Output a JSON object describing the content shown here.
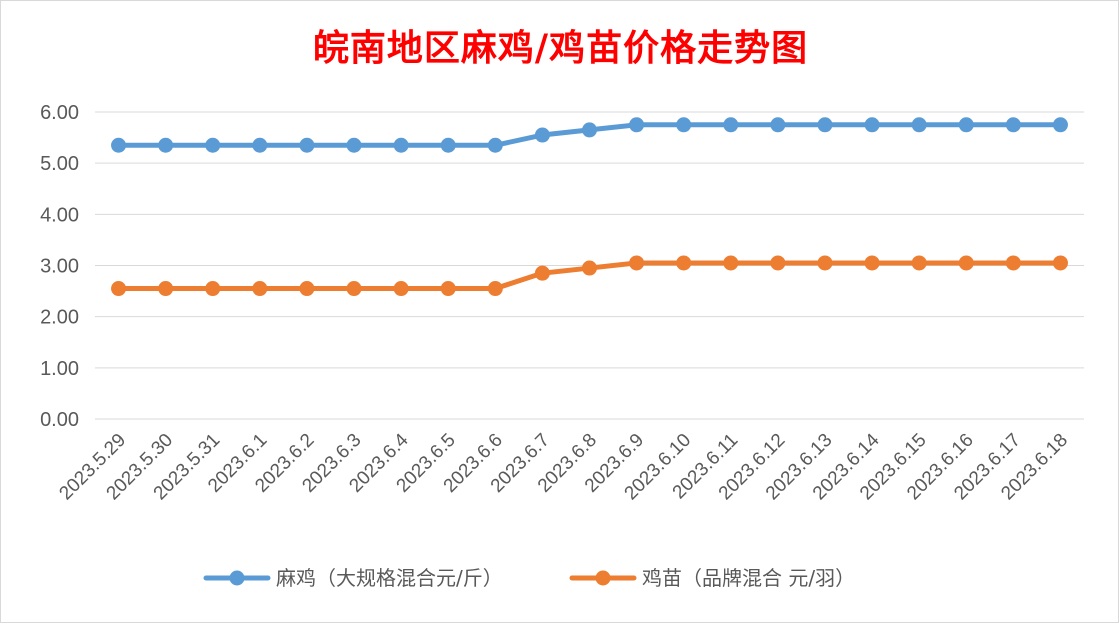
{
  "chart_data": {
    "type": "line",
    "title": "皖南地区麻鸡/鸡苗价格走势图",
    "xlabel": "",
    "ylabel": "",
    "ylim": [
      0,
      6
    ],
    "yticks": [
      "0.00",
      "1.00",
      "2.00",
      "3.00",
      "4.00",
      "5.00",
      "6.00"
    ],
    "grid": true,
    "legend_position": "bottom",
    "categories": [
      "2023.5.29",
      "2023.5.30",
      "2023.5.31",
      "2023.6.1",
      "2023.6.2",
      "2023.6.3",
      "2023.6.4",
      "2023.6.5",
      "2023.6.6",
      "2023.6.7",
      "2023.6.8",
      "2023.6.9",
      "2023.6.10",
      "2023.6.11",
      "2023.6.12",
      "2023.6.13",
      "2023.6.14",
      "2023.6.15",
      "2023.6.16",
      "2023.6.17",
      "2023.6.18"
    ],
    "series": [
      {
        "name": "麻鸡（大规格混合元/斤）",
        "color": "#5b9bd5",
        "values": [
          5.35,
          5.35,
          5.35,
          5.35,
          5.35,
          5.35,
          5.35,
          5.35,
          5.35,
          5.55,
          5.65,
          5.75,
          5.75,
          5.75,
          5.75,
          5.75,
          5.75,
          5.75,
          5.75,
          5.75,
          5.75
        ]
      },
      {
        "name": "鸡苗（品牌混合 元/羽）",
        "color": "#ed7d31",
        "values": [
          2.55,
          2.55,
          2.55,
          2.55,
          2.55,
          2.55,
          2.55,
          2.55,
          2.55,
          2.85,
          2.95,
          3.05,
          3.05,
          3.05,
          3.05,
          3.05,
          3.05,
          3.05,
          3.05,
          3.05,
          3.05
        ]
      }
    ]
  }
}
